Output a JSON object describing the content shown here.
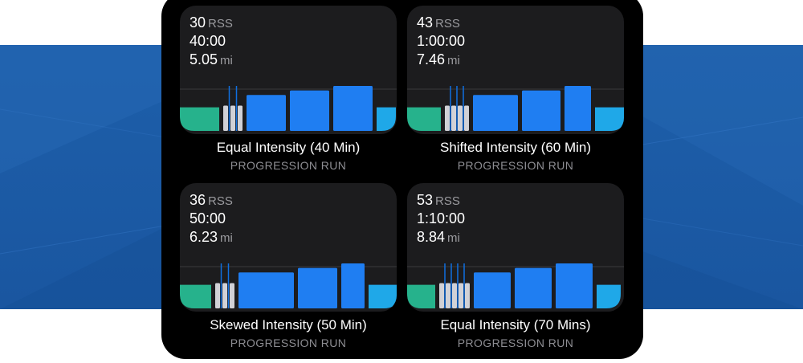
{
  "colors": {
    "background_band": "#1d5faa",
    "phone": "#000000",
    "card": "#1c1c1e",
    "warmup": "#26b28c",
    "interval": "#1f7ef2",
    "recovery": "#d1d1d6",
    "cooldown": "#1fa8e8",
    "guide_line": "#0f6fe0"
  },
  "workouts": [
    {
      "rss_value": "30",
      "rss_unit": "RSS",
      "duration": "40:00",
      "distance_value": "5.05",
      "distance_unit": "mi",
      "title": "Equal Intensity (40 Min)",
      "subtitle": "PROGRESSION RUN",
      "segments": [
        {
          "type": "warmup",
          "width": 49,
          "level": 0.42
        },
        {
          "type": "strides",
          "count": 3,
          "gap": 3,
          "width": 6,
          "level": 0.45
        },
        {
          "type": "interval",
          "width": 49,
          "level": 0.64
        },
        {
          "type": "interval",
          "width": 49,
          "level": 0.72
        },
        {
          "type": "interval",
          "width": 49,
          "level": 0.8
        },
        {
          "type": "cooldown",
          "width": 24,
          "level": 0.42
        }
      ]
    },
    {
      "rss_value": "43",
      "rss_unit": "RSS",
      "duration": "1:00:00",
      "distance_value": "7.46",
      "distance_unit": "mi",
      "title": "Shifted Intensity (60 Min)",
      "subtitle": "PROGRESSION RUN",
      "segments": [
        {
          "type": "warmup",
          "width": 42,
          "level": 0.42
        },
        {
          "type": "strides",
          "count": 4,
          "gap": 2,
          "width": 6,
          "level": 0.45
        },
        {
          "type": "interval",
          "width": 56,
          "level": 0.64
        },
        {
          "type": "interval",
          "width": 48,
          "level": 0.72
        },
        {
          "type": "interval",
          "width": 33,
          "level": 0.8
        },
        {
          "type": "cooldown",
          "width": 37,
          "level": 0.42
        }
      ]
    },
    {
      "rss_value": "36",
      "rss_unit": "RSS",
      "duration": "50:00",
      "distance_value": "6.23",
      "distance_unit": "mi",
      "title": "Skewed Intensity (50 Min)",
      "subtitle": "PROGRESSION RUN",
      "segments": [
        {
          "type": "warmup",
          "width": 39,
          "level": 0.42
        },
        {
          "type": "strides",
          "count": 3,
          "gap": 3,
          "width": 6,
          "level": 0.45
        },
        {
          "type": "interval",
          "width": 69,
          "level": 0.64
        },
        {
          "type": "interval",
          "width": 49,
          "level": 0.72
        },
        {
          "type": "interval",
          "width": 29,
          "level": 0.8
        },
        {
          "type": "cooldown",
          "width": 37,
          "level": 0.42
        }
      ]
    },
    {
      "rss_value": "53",
      "rss_unit": "RSS",
      "duration": "1:10:00",
      "distance_value": "8.84",
      "distance_unit": "mi",
      "title": "Equal Intensity (70 Mins)",
      "subtitle": "PROGRESSION RUN",
      "segments": [
        {
          "type": "warmup",
          "width": 35,
          "level": 0.42
        },
        {
          "type": "strides",
          "count": 5,
          "gap": 2,
          "width": 6,
          "level": 0.45
        },
        {
          "type": "interval",
          "width": 46,
          "level": 0.64
        },
        {
          "type": "interval",
          "width": 46,
          "level": 0.72
        },
        {
          "type": "interval",
          "width": 46,
          "level": 0.8
        },
        {
          "type": "cooldown",
          "width": 30,
          "level": 0.42
        }
      ]
    }
  ]
}
